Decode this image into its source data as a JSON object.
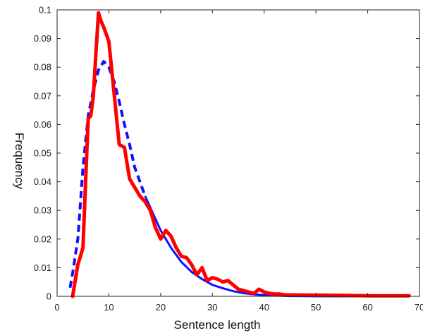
{
  "chart_data": {
    "type": "line",
    "title": "",
    "xlabel": "Sentence length",
    "ylabel": "Frequency",
    "xlim": [
      0,
      70
    ],
    "ylim": [
      0,
      0.1
    ],
    "xticks": [
      0,
      10,
      20,
      30,
      40,
      50,
      60,
      70
    ],
    "yticks": [
      0,
      0.01,
      0.02,
      0.03,
      0.04,
      0.05,
      0.06,
      0.07,
      0.08,
      0.09,
      0.1
    ],
    "xtick_labels": [
      "0",
      "10",
      "20",
      "30",
      "40",
      "50",
      "60",
      "70"
    ],
    "ytick_labels": [
      "0",
      "0.01",
      "0.02",
      "0.03",
      "0.04",
      "0.05",
      "0.06",
      "0.07",
      "0.08",
      "0.09",
      "0.1"
    ],
    "grid": false,
    "legend": "none",
    "series": [
      {
        "color": "#1010ff",
        "style": "dashed-then-solid",
        "x": [
          2.5,
          3,
          4,
          5,
          6,
          7,
          8,
          9,
          10,
          11,
          12,
          13,
          14,
          15,
          16,
          17,
          18,
          19,
          20,
          21,
          22,
          24,
          26,
          28,
          30,
          32,
          34,
          36,
          38,
          40,
          45,
          50,
          55,
          60,
          65,
          68
        ],
        "y": [
          0.003,
          0.008,
          0.02,
          0.045,
          0.063,
          0.072,
          0.079,
          0.082,
          0.08,
          0.075,
          0.068,
          0.06,
          0.053,
          0.045,
          0.04,
          0.035,
          0.031,
          0.027,
          0.023,
          0.02,
          0.017,
          0.012,
          0.0085,
          0.006,
          0.004,
          0.0028,
          0.0018,
          0.0011,
          0.0007,
          0.0004,
          0.0001,
          3e-05,
          1e-05,
          0,
          0,
          0
        ]
      },
      {
        "color": "#ff0000",
        "style": "solid",
        "x": [
          3,
          4,
          5,
          5.5,
          6,
          6.5,
          7,
          7.5,
          8,
          8.5,
          9,
          10,
          11,
          12,
          13,
          14,
          15,
          16,
          17,
          18,
          19,
          20,
          21,
          22,
          23,
          24,
          25,
          26,
          27,
          28,
          29,
          30,
          31,
          32,
          33,
          34,
          35,
          36,
          37,
          38,
          39,
          40,
          41,
          42,
          43,
          44,
          45,
          50,
          55,
          60,
          65,
          68
        ],
        "y": [
          0,
          0.011,
          0.017,
          0.04,
          0.062,
          0.063,
          0.07,
          0.085,
          0.099,
          0.096,
          0.094,
          0.089,
          0.071,
          0.053,
          0.052,
          0.041,
          0.038,
          0.035,
          0.033,
          0.03,
          0.024,
          0.02,
          0.023,
          0.021,
          0.017,
          0.014,
          0.0135,
          0.011,
          0.0075,
          0.01,
          0.0055,
          0.0065,
          0.006,
          0.005,
          0.0055,
          0.004,
          0.0025,
          0.002,
          0.0015,
          0.001,
          0.0025,
          0.0015,
          0.001,
          0.0008,
          0.0008,
          0.0005,
          0.0005,
          0.0004,
          0.0003,
          0.0002,
          0.0002,
          0.0002
        ]
      }
    ]
  }
}
